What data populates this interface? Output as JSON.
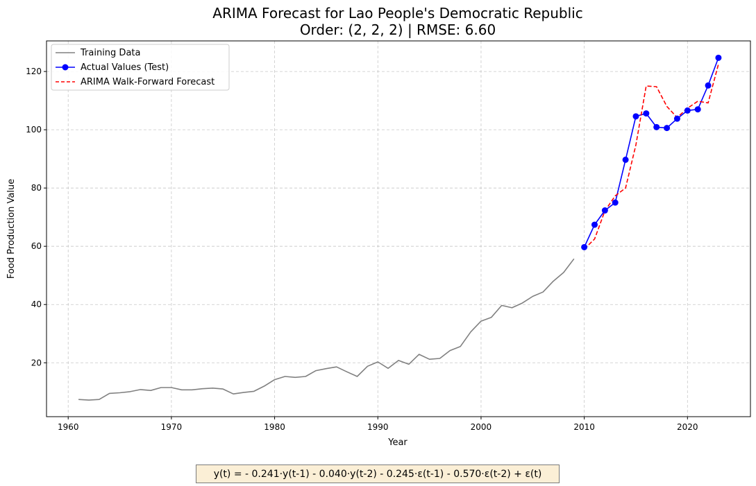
{
  "chart_data": {
    "type": "line",
    "title": "ARIMA Forecast for Lao People's Democratic Republic",
    "subtitle": "Order: (2, 2, 2) | RMSE: 6.60",
    "xlabel": "Year",
    "ylabel": "Food Production Value",
    "xlim": [
      1957.9,
      2026.1
    ],
    "ylim": [
      1.5,
      130.5
    ],
    "x_ticks": [
      1960,
      1970,
      1980,
      1990,
      2000,
      2010,
      2020
    ],
    "x_tick_labels": [
      "1960",
      "1970",
      "1980",
      "1990",
      "2000",
      "2010",
      "2020"
    ],
    "y_ticks": [
      20,
      40,
      60,
      80,
      100,
      120
    ],
    "y_tick_labels": [
      "20",
      "40",
      "60",
      "80",
      "100",
      "120"
    ],
    "grid": true,
    "legend_position": "top-left",
    "series": [
      {
        "name": "Training Data",
        "color": "#808080",
        "style": "solid",
        "x": [
          1961,
          1962,
          1963,
          1964,
          1965,
          1966,
          1967,
          1968,
          1969,
          1970,
          1971,
          1972,
          1973,
          1974,
          1975,
          1976,
          1977,
          1978,
          1979,
          1980,
          1981,
          1982,
          1983,
          1984,
          1985,
          1986,
          1987,
          1988,
          1989,
          1990,
          1991,
          1992,
          1993,
          1994,
          1995,
          1996,
          1997,
          1998,
          1999,
          2000,
          2001,
          2002,
          2003,
          2004,
          2005,
          2006,
          2007,
          2008,
          2009
        ],
        "y": [
          7.4,
          7.2,
          7.4,
          9.5,
          9.7,
          10.1,
          10.8,
          10.5,
          11.5,
          11.5,
          10.7,
          10.7,
          11.1,
          11.3,
          11.0,
          9.3,
          9.8,
          10.2,
          12.0,
          14.2,
          15.3,
          15.0,
          15.3,
          17.3,
          18.0,
          18.6,
          16.9,
          15.3,
          18.8,
          20.3,
          18.1,
          20.8,
          19.5,
          22.9,
          21.2,
          21.5,
          24.2,
          25.6,
          30.6,
          34.3,
          35.6,
          39.7,
          38.9,
          40.5,
          42.8,
          44.3,
          48.0,
          51.0,
          55.7
        ]
      },
      {
        "name": "Actual Values (Test)",
        "color": "#0000ff",
        "style": "solid",
        "marker": "circle",
        "x": [
          2010,
          2011,
          2012,
          2013,
          2014,
          2015,
          2016,
          2017,
          2018,
          2019,
          2020,
          2021,
          2022,
          2023
        ],
        "y": [
          59.7,
          67.4,
          72.3,
          75.0,
          89.7,
          104.6,
          105.6,
          100.9,
          100.6,
          103.8,
          106.6,
          107.0,
          115.2,
          124.7
        ]
      },
      {
        "name": "ARIMA Walk-Forward Forecast",
        "color": "#ff0000",
        "style": "dashed",
        "x": [
          2010,
          2011,
          2012,
          2013,
          2014,
          2015,
          2016,
          2017,
          2018,
          2019,
          2020,
          2021,
          2022,
          2023
        ],
        "y": [
          59.0,
          62.5,
          72.2,
          77.3,
          80.0,
          94.8,
          115.0,
          114.8,
          108.0,
          104.2,
          107.4,
          109.8,
          109.2,
          122.5
        ]
      }
    ]
  },
  "equation": "y(t) = - 0.241·y(t-1) - 0.040·y(t-2) - 0.245·ε(t-1) - 0.570·ε(t-2) + ε(t)"
}
